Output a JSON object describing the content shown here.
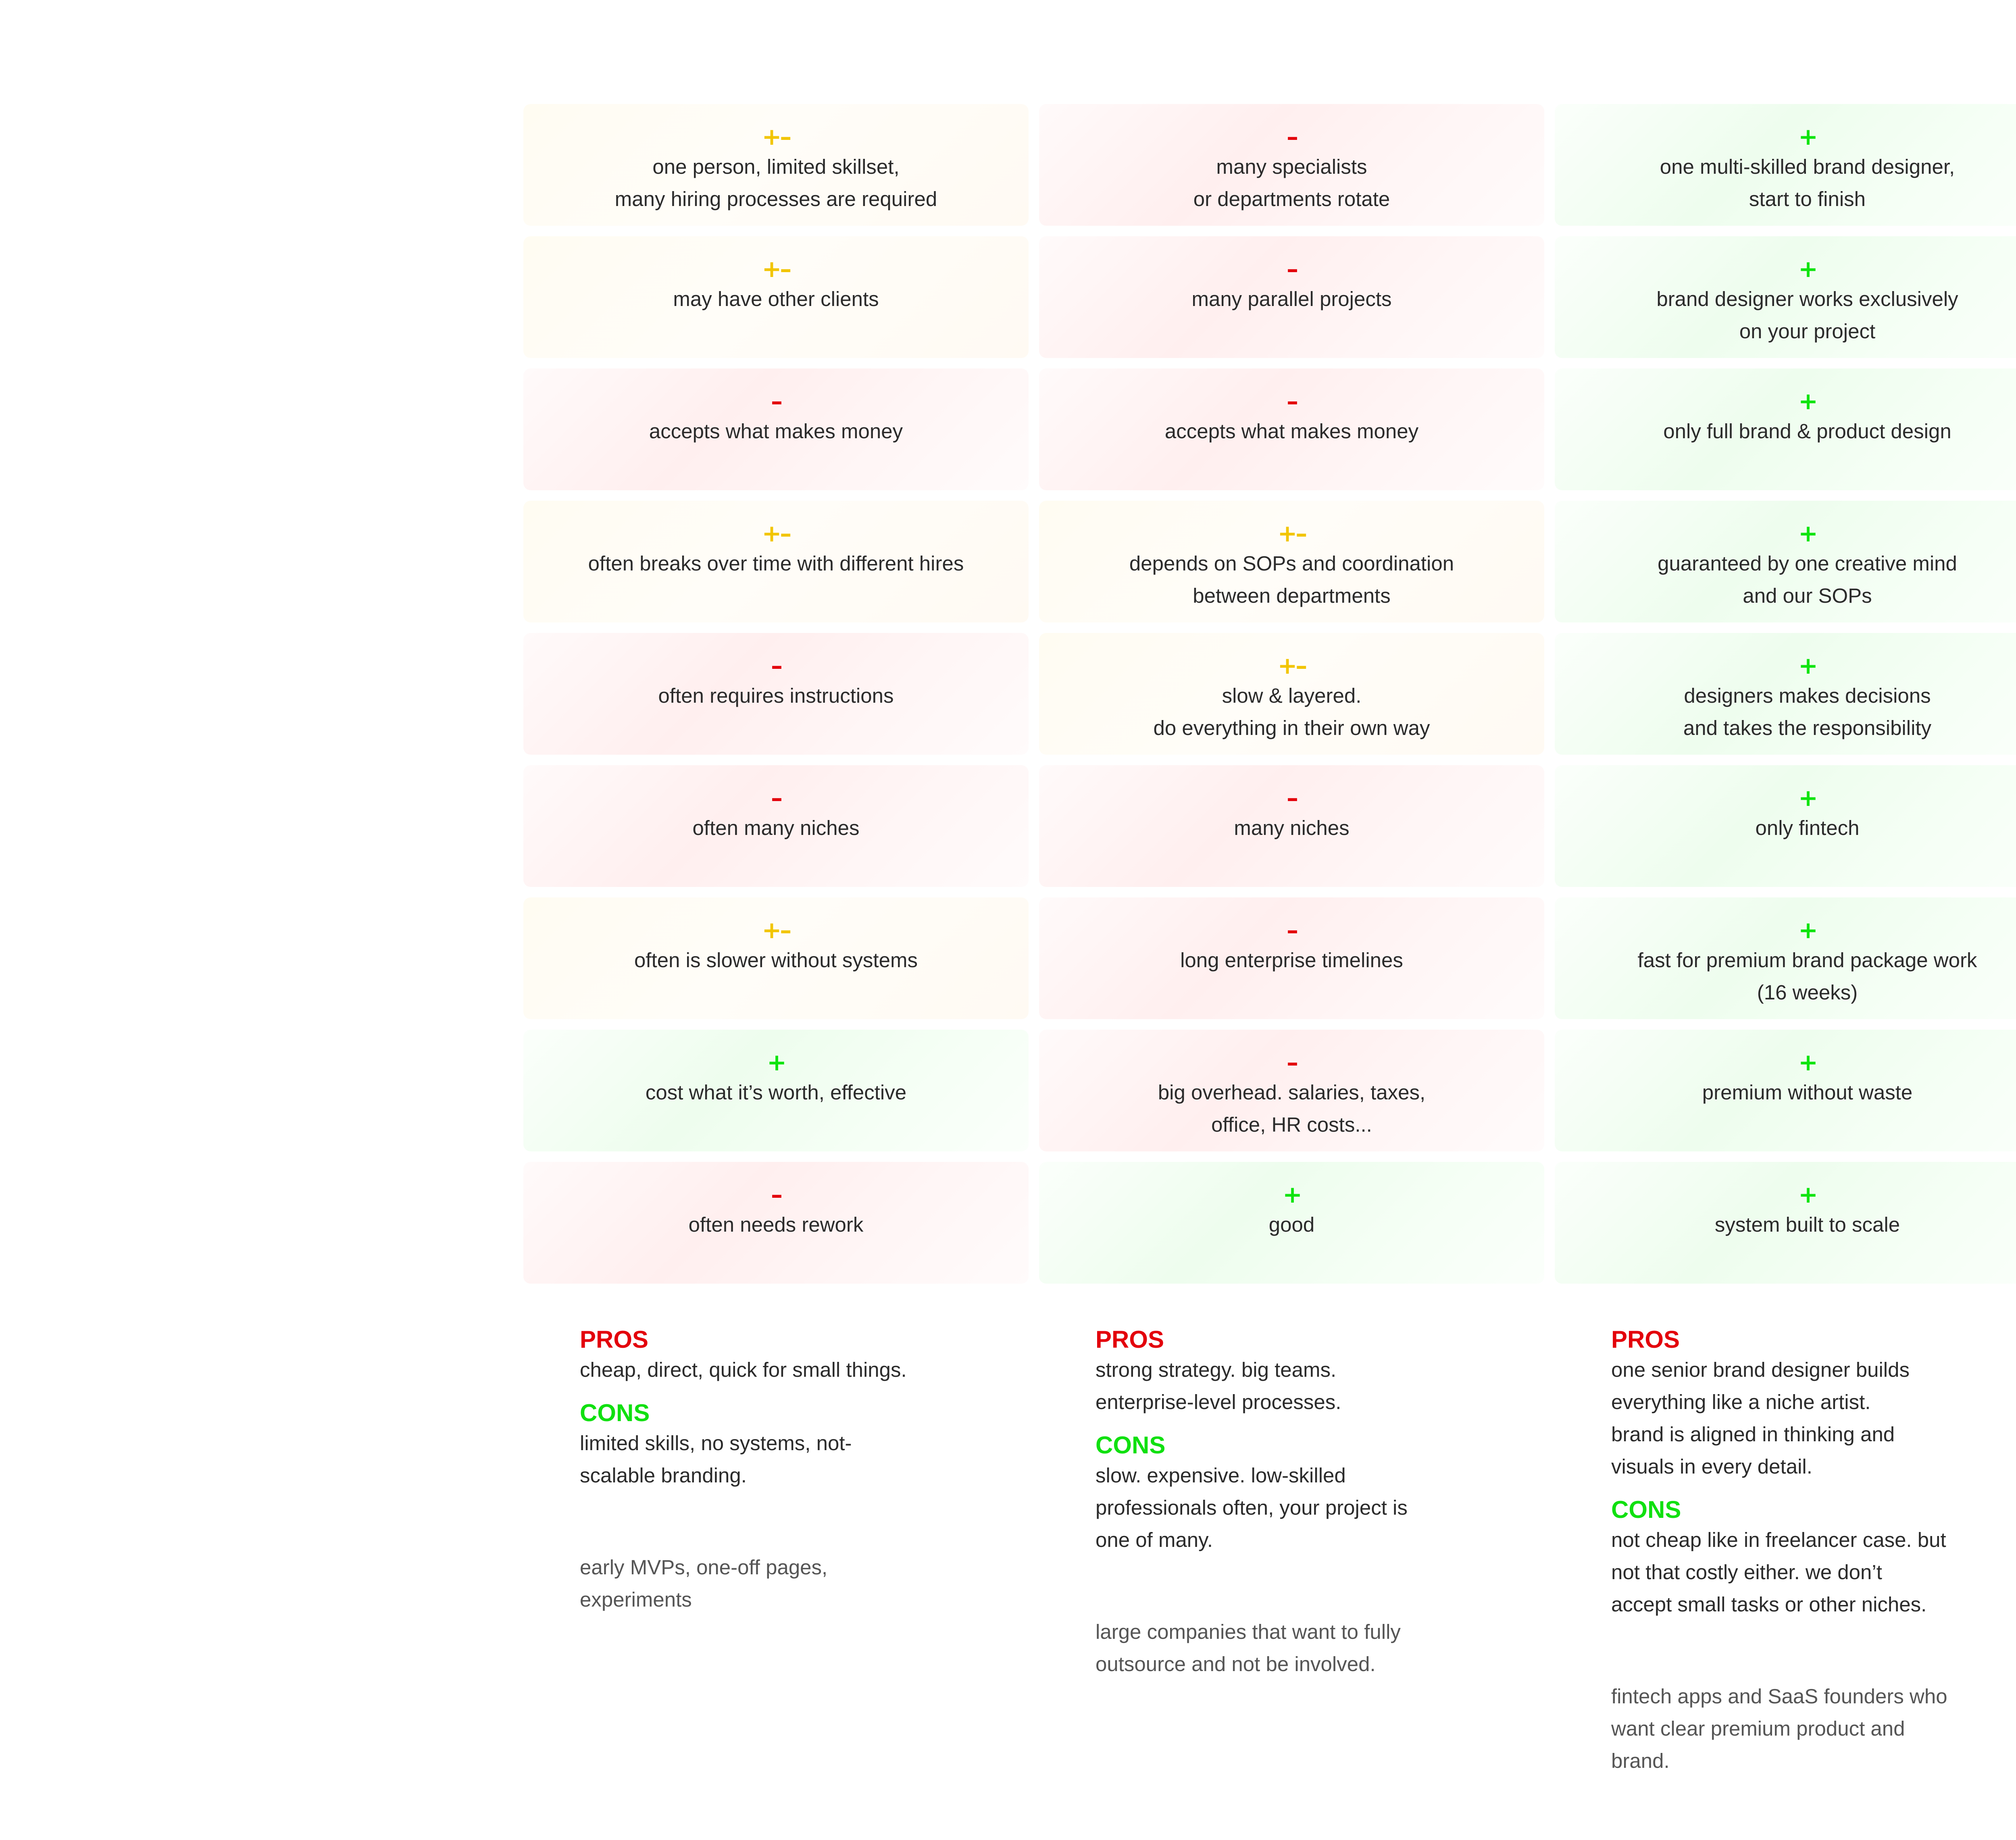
{
  "symbols": {
    "plus": "+",
    "minus": "–",
    "mixed": "+–"
  },
  "colors": {
    "positive": "#0ee40e",
    "negative": "#e3000b",
    "mixed": "#f2c500"
  },
  "rows": [
    [
      {
        "type": "mixed",
        "text": "one person, limited skillset,\nmany hiring processes are required"
      },
      {
        "type": "negative",
        "text": "many specialists\nor departments rotate"
      },
      {
        "type": "positive",
        "text": "one multi-skilled brand designer,\nstart to finish"
      }
    ],
    [
      {
        "type": "mixed",
        "text": "may have other clients"
      },
      {
        "type": "negative",
        "text": "many parallel projects"
      },
      {
        "type": "positive",
        "text": "brand designer works exclusively\non your project"
      }
    ],
    [
      {
        "type": "negative",
        "text": "accepts what makes money"
      },
      {
        "type": "negative",
        "text": "accepts what makes money"
      },
      {
        "type": "positive",
        "text": "only full brand & product design"
      }
    ],
    [
      {
        "type": "mixed",
        "text": "often breaks over time with different hires"
      },
      {
        "type": "mixed",
        "text": "depends on SOPs and coordination\nbetween departments"
      },
      {
        "type": "positive",
        "text": "guaranteed by one creative mind\nand our SOPs"
      }
    ],
    [
      {
        "type": "negative",
        "text": "often requires instructions"
      },
      {
        "type": "mixed",
        "text": "slow & layered.\ndo everything in their own way"
      },
      {
        "type": "positive",
        "text": "designers makes decisions\nand takes the responsibility"
      }
    ],
    [
      {
        "type": "negative",
        "text": "often many niches"
      },
      {
        "type": "negative",
        "text": "many niches"
      },
      {
        "type": "positive",
        "text": "only fintech"
      }
    ],
    [
      {
        "type": "mixed",
        "text": "often is slower without systems"
      },
      {
        "type": "negative",
        "text": "long enterprise timelines"
      },
      {
        "type": "positive",
        "text": "fast for premium brand package work\n(16 weeks)"
      }
    ],
    [
      {
        "type": "positive",
        "text": "cost what it’s worth, effective"
      },
      {
        "type": "negative",
        "text": "big overhead. salaries, taxes,\noffice, HR costs..."
      },
      {
        "type": "positive",
        "text": "premium without waste"
      }
    ],
    [
      {
        "type": "negative",
        "text": "often needs rework"
      },
      {
        "type": "positive",
        "text": "good"
      },
      {
        "type": "positive",
        "text": "system built to scale"
      }
    ]
  ],
  "summaries": [
    {
      "pros_label": "PROS",
      "pros_text": "cheap, direct, quick for small things.",
      "cons_label": "CONS",
      "cons_text": "limited skills, no systems, not-\nscalable branding.",
      "ideal_for": "early MVPs, one-off pages,\nexperiments"
    },
    {
      "pros_label": "PROS",
      "pros_text": "strong strategy. big teams.\nenterprise-level processes.",
      "cons_label": "CONS",
      "cons_text": "slow. expensive. low-skilled\nprofessionals often, your project is\none of many.",
      "ideal_for": "large companies that want to fully\noutsource and not be involved."
    },
    {
      "pros_label": "PROS",
      "pros_text": "one senior brand designer builds\neverything like a niche artist.\nbrand is aligned in thinking and\nvisuals in every detail.",
      "cons_label": "CONS",
      "cons_text": "not cheap like in freelancer case. but\nnot that  costly either. we don’t\naccept small tasks or other niches.",
      "ideal_for": "fintech apps and SaaS founders who\nwant clear premium product and\nbrand."
    }
  ]
}
